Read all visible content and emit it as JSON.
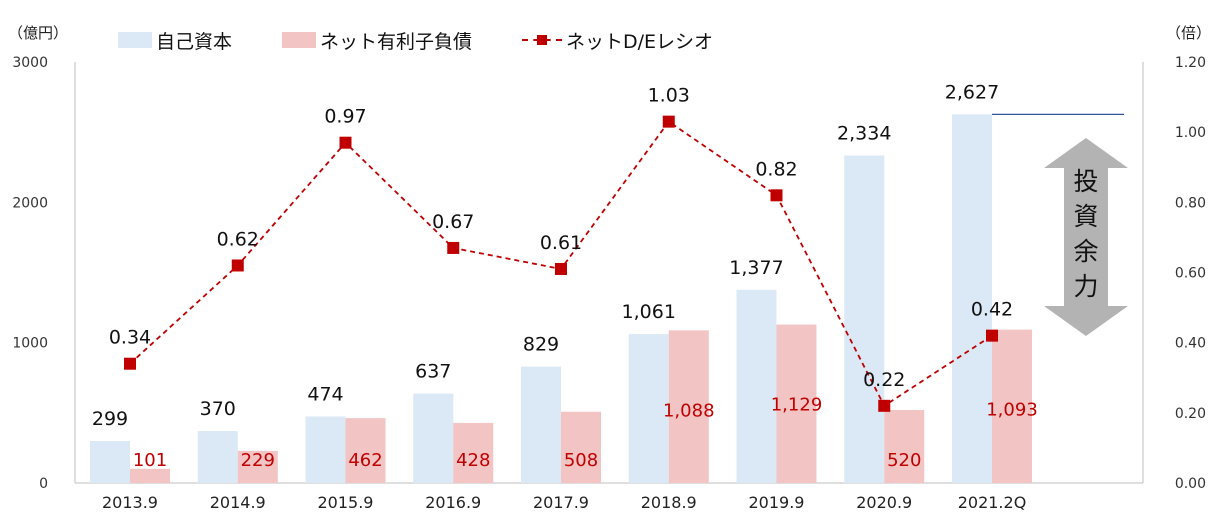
{
  "units": {
    "left": "（億円）",
    "right": "（倍）"
  },
  "legend": [
    {
      "label": "自己資本",
      "color": "#dbe8f5"
    },
    {
      "label": "ネット有利子負債",
      "color": "#f2c4c4"
    },
    {
      "label": "ネットD/Eレシオ",
      "color": "#c00000"
    }
  ],
  "annotation": "投資余力",
  "colors": {
    "equity": "#dbe8f5",
    "debt": "#f2c4c4",
    "ratio": "#c00000",
    "reference_line": "#2e5597",
    "arrow": "#b3b3b3"
  },
  "chart_data": {
    "type": "bar",
    "categories": [
      "2013.9",
      "2014.9",
      "2015.9",
      "2016.9",
      "2017.9",
      "2018.9",
      "2019.9",
      "2020.9",
      "2021.2Q"
    ],
    "series": [
      {
        "name": "自己資本",
        "axis": "left",
        "values": [
          299,
          370,
          474,
          637,
          829,
          1061,
          1377,
          2334,
          2627
        ],
        "labels": [
          "299",
          "370",
          "474",
          "637",
          "829",
          "1,061",
          "1,377",
          "2,334",
          "2,627"
        ]
      },
      {
        "name": "ネット有利子負債",
        "axis": "left",
        "values": [
          101,
          229,
          462,
          428,
          508,
          1088,
          1129,
          520,
          1093
        ],
        "labels": [
          "101",
          "229",
          "462",
          "428",
          "508",
          "1,088",
          "1,129",
          "520",
          "1,093"
        ]
      },
      {
        "name": "ネットD/Eレシオ",
        "axis": "right",
        "type": "line",
        "values": [
          0.34,
          0.62,
          0.97,
          0.67,
          0.61,
          1.03,
          0.82,
          0.22,
          0.42
        ],
        "labels": [
          "0.34",
          "0.62",
          "0.97",
          "0.67",
          "0.61",
          "1.03",
          "0.82",
          "0.22",
          "0.42"
        ]
      }
    ],
    "y_left": {
      "lim": [
        0,
        3000
      ],
      "ticks": [
        "0",
        "1000",
        "2000",
        "3000"
      ]
    },
    "y_right": {
      "lim": [
        0,
        1.2
      ],
      "ticks": [
        "0.00",
        "0.20",
        "0.40",
        "0.60",
        "0.80",
        "1.00",
        "1.20"
      ]
    },
    "reference_value": 2627,
    "grid": false
  }
}
